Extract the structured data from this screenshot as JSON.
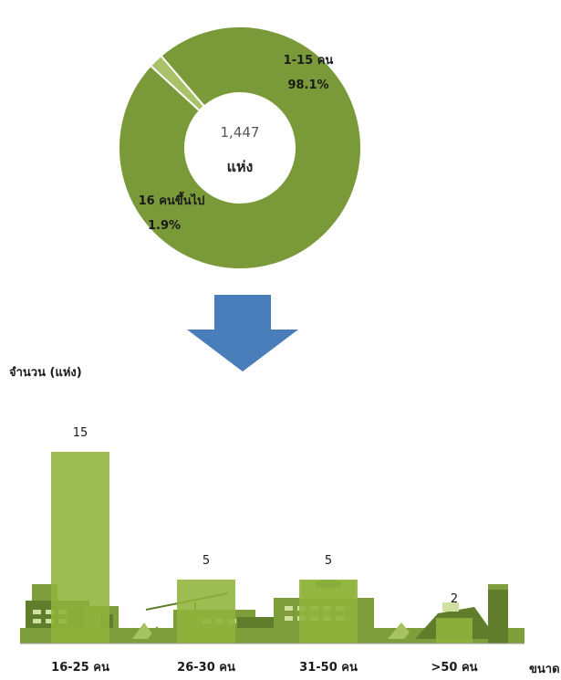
{
  "chart_data": [
    {
      "type": "pie",
      "style": "donut",
      "center_value": "1,447",
      "center_unit": "แห่ง",
      "slices": [
        {
          "label": "1-15 คน",
          "percent_label": "98.1%",
          "value": 98.1,
          "color": "#7a9a3a"
        },
        {
          "label": "16 คนขึ้นไป",
          "percent_label": "1.9%",
          "value": 1.9,
          "color": "#a9c26a"
        }
      ]
    },
    {
      "type": "bar",
      "ylabel": "จำนวน (แห่ง)",
      "xlabel": "ขนาด",
      "categories": [
        "16-25 คน",
        "26-30 คน",
        "31-50 คน",
        ">50 คน"
      ],
      "values": [
        15,
        5,
        5,
        2
      ],
      "ylim": [
        0,
        16
      ],
      "bar_color": "#8fb43a",
      "grid": false
    }
  ],
  "arrow_color": "#4a7ebb"
}
